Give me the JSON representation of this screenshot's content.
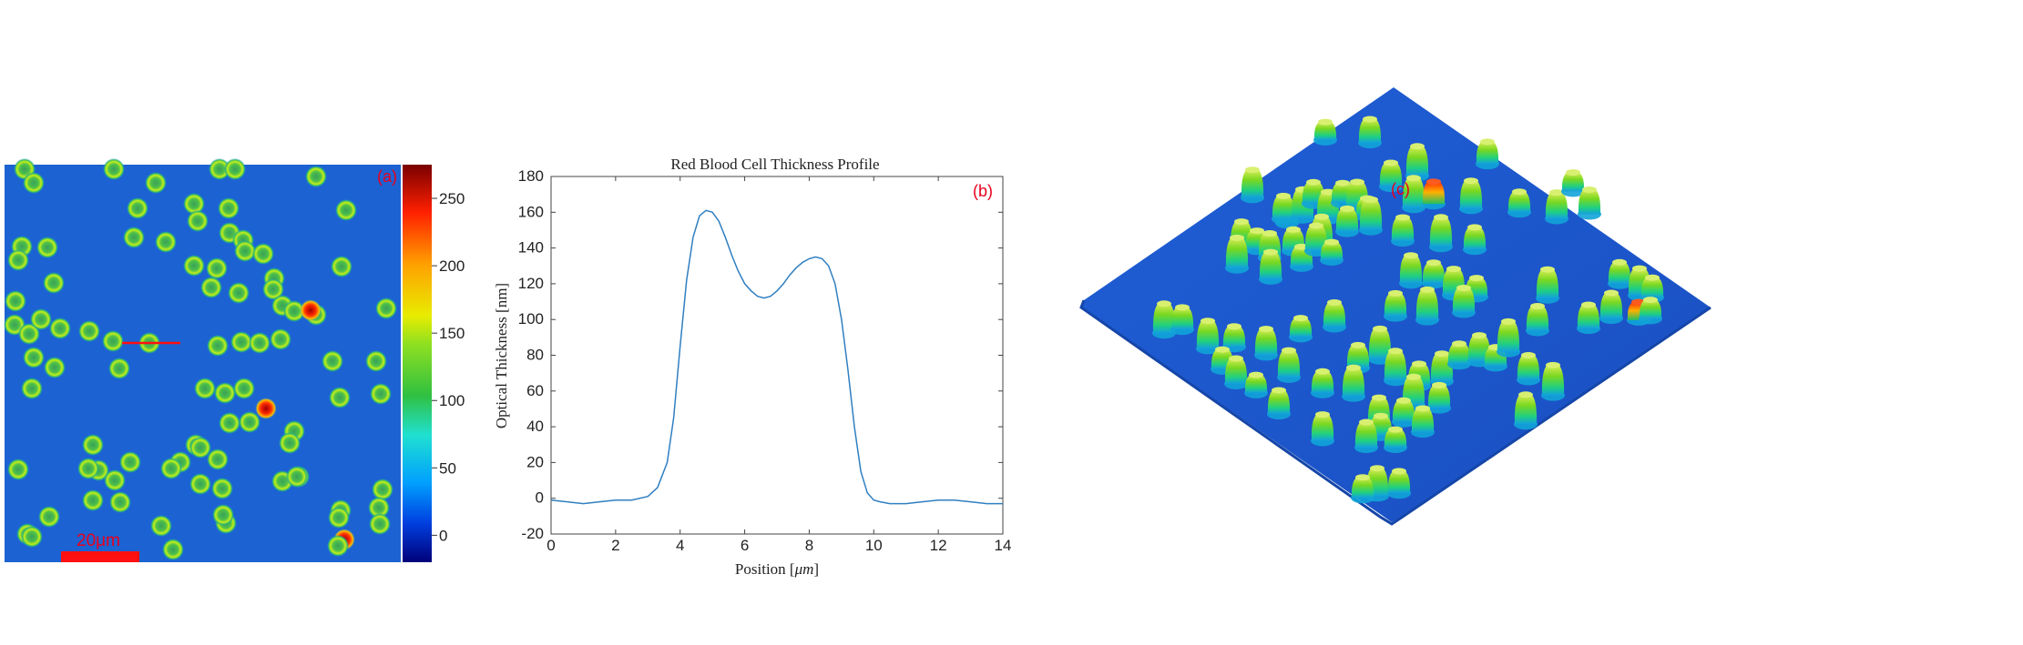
{
  "panels": {
    "a": {
      "label": "(a)",
      "scale_bar_label": "20μm",
      "colorbar": {
        "ticks": [
          "0",
          "50",
          "100",
          "150",
          "200",
          "250"
        ],
        "range": [
          -20,
          275
        ]
      },
      "colors": {
        "background": "#1a5fd0",
        "scale_bar": "#ff1010",
        "cell_ring": "#9be31f",
        "cell_center": "#2e9a57"
      }
    },
    "c": {
      "label": "(c)"
    }
  },
  "chart_data": {
    "type": "line",
    "title": "Red Blood Cell Thickness Profile",
    "panel_label": "(b)",
    "xlabel": "Position [",
    "xlabel_unit": "μm",
    "xlabel_close": "]",
    "ylabel": "Optical Thickness [nm]",
    "xlim": [
      0,
      14
    ],
    "ylim": [
      -20,
      180
    ],
    "xticks": [
      0,
      2,
      4,
      6,
      8,
      10,
      12,
      14
    ],
    "yticks": [
      -20,
      0,
      20,
      40,
      60,
      80,
      100,
      120,
      140,
      160,
      180
    ],
    "line_color": "#2f7fc1",
    "series": [
      {
        "x": [
          0,
          0.5,
          1,
          1.5,
          2,
          2.5,
          3,
          3.3,
          3.6,
          3.8,
          4.0,
          4.2,
          4.4,
          4.6,
          4.8,
          5.0,
          5.2,
          5.4,
          5.6,
          5.8,
          6.0,
          6.2,
          6.4,
          6.6,
          6.8,
          7.0,
          7.2,
          7.4,
          7.6,
          7.8,
          8.0,
          8.2,
          8.4,
          8.6,
          8.8,
          9.0,
          9.2,
          9.4,
          9.6,
          9.8,
          10.0,
          10.2,
          10.5,
          11,
          11.5,
          12,
          12.5,
          13,
          13.5,
          14
        ],
        "y": [
          -1,
          -2,
          -3,
          -2,
          -1,
          -1,
          1,
          6,
          20,
          45,
          85,
          122,
          146,
          158,
          161,
          160,
          155,
          146,
          136,
          127,
          120,
          116,
          113,
          112,
          113,
          116,
          120,
          125,
          129,
          132,
          134,
          135,
          134,
          130,
          120,
          100,
          72,
          40,
          15,
          3,
          -1,
          -2,
          -3,
          -3,
          -2,
          -1,
          -1,
          -2,
          -3,
          -3
        ]
      }
    ]
  }
}
